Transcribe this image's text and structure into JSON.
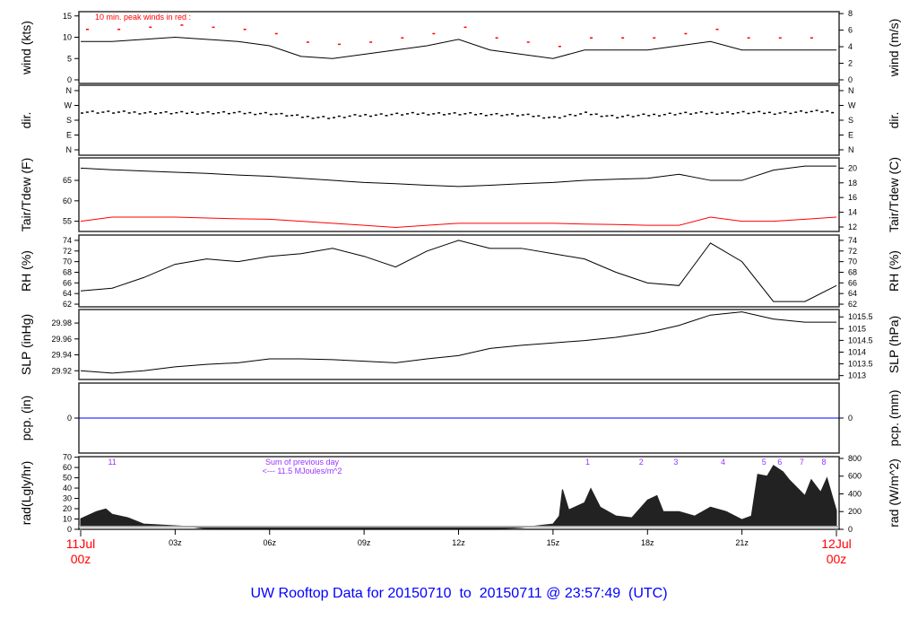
{
  "chart_data": [
    {
      "type": "line",
      "id": "wind",
      "ylabel": "wind (kts)",
      "ylabel_right": "wind (m/s)",
      "ylim": [
        0,
        16
      ],
      "yticks": [
        0,
        5,
        10,
        15
      ],
      "yticks_right": [
        0,
        2,
        4,
        6,
        8
      ],
      "annotation": "10 min. peak winds in red :",
      "x_hours": [
        0,
        1,
        2,
        3,
        4,
        5,
        6,
        7,
        8,
        9,
        10,
        11,
        12,
        13,
        14,
        15,
        16,
        17,
        18,
        19,
        20,
        21,
        22,
        23,
        24
      ],
      "series": [
        {
          "values": [
            9,
            9,
            9.5,
            10,
            9.5,
            9,
            8,
            5.5,
            5,
            6,
            7,
            8,
            9.5,
            7,
            6,
            5,
            7,
            7,
            7,
            8,
            9,
            7,
            7,
            7,
            7
          ],
          "color": "#000000"
        },
        {
          "values": [
            12,
            12,
            12.5,
            13,
            12.5,
            12,
            11,
            9,
            8.5,
            9,
            10,
            11,
            12.5,
            10,
            9,
            8,
            10,
            10,
            10,
            11,
            12,
            10,
            10,
            10,
            10
          ],
          "color": "#ff0000",
          "style": "points"
        }
      ]
    },
    {
      "type": "scatter",
      "id": "dir",
      "ylabel": "dir.",
      "ylabel_right": "dir.",
      "ylim": [
        0,
        360
      ],
      "yticks": [
        0,
        90,
        180,
        270,
        360
      ],
      "ytick_labels": [
        "N",
        "E",
        "S",
        "W",
        "N"
      ],
      "x_hours": [
        0,
        1,
        2,
        3,
        4,
        5,
        6,
        7,
        8,
        9,
        10,
        11,
        12,
        13,
        14,
        15,
        16,
        17,
        18,
        19,
        20,
        21,
        22,
        23,
        24
      ],
      "values": [
        235,
        232,
        230,
        228,
        230,
        228,
        225,
        205,
        200,
        215,
        220,
        225,
        222,
        220,
        215,
        200,
        225,
        205,
        215,
        225,
        228,
        230,
        228,
        235,
        238
      ]
    },
    {
      "type": "line",
      "id": "temp",
      "ylabel": "Tair/Tdew (F)",
      "ylabel_right": "Tair/Tdew (C)",
      "ylim": [
        52.5,
        70.5
      ],
      "yticks": [
        55,
        60,
        65
      ],
      "yticks_right": [
        12,
        14,
        16,
        18,
        20
      ],
      "x_hours": [
        0,
        1,
        2,
        3,
        4,
        5,
        6,
        7,
        8,
        9,
        10,
        11,
        12,
        13,
        14,
        15,
        16,
        17,
        18,
        19,
        20,
        21,
        22,
        23,
        24
      ],
      "series": [
        {
          "values": [
            68,
            67.6,
            67.3,
            67,
            66.7,
            66.3,
            66,
            65.5,
            65,
            64.5,
            64.2,
            63.8,
            63.5,
            63.8,
            64.2,
            64.5,
            65,
            65.3,
            65.5,
            66.5,
            65,
            65,
            67.5,
            68.5,
            68.5
          ],
          "color": "#000000"
        },
        {
          "values": [
            55,
            56,
            56,
            56,
            55.8,
            55.6,
            55.5,
            55,
            54.5,
            54,
            53.5,
            54,
            54.5,
            54.5,
            54.5,
            54.5,
            54.3,
            54.2,
            54,
            54,
            56,
            55,
            55,
            55.5,
            56
          ],
          "color": "#ff0000"
        }
      ]
    },
    {
      "type": "line",
      "id": "rh",
      "ylabel": "RH (%)",
      "ylabel_right": "RH (%)",
      "ylim": [
        61.5,
        75
      ],
      "yticks": [
        62,
        64,
        66,
        68,
        70,
        72,
        74
      ],
      "x_hours": [
        0,
        1,
        2,
        3,
        4,
        5,
        6,
        7,
        8,
        9,
        10,
        11,
        12,
        13,
        14,
        15,
        16,
        17,
        18,
        19,
        20,
        21,
        22,
        23,
        24
      ],
      "series": [
        {
          "values": [
            64.5,
            65,
            67,
            69.5,
            70.5,
            70,
            71,
            71.5,
            72.5,
            71,
            69,
            72,
            74,
            72.5,
            72.5,
            71.5,
            70.5,
            68,
            66,
            65.5,
            73.5,
            70,
            62.5,
            62.5,
            65.5
          ],
          "color": "#000000"
        }
      ]
    },
    {
      "type": "line",
      "id": "slp",
      "ylabel": "SLP (inHg)",
      "ylabel_right": "SLP (hPa)",
      "ylim": [
        29.909,
        29.997
      ],
      "yticks": [
        29.92,
        29.94,
        29.96,
        29.98
      ],
      "yticks_right": [
        1013,
        1013.5,
        1014,
        1014.5,
        1015,
        1015.5
      ],
      "x_hours": [
        0,
        1,
        2,
        3,
        4,
        5,
        6,
        7,
        8,
        9,
        10,
        11,
        12,
        13,
        14,
        15,
        16,
        17,
        18,
        19,
        20,
        21,
        22,
        23,
        24
      ],
      "series": [
        {
          "values": [
            29.92,
            29.917,
            29.92,
            29.925,
            29.928,
            29.93,
            29.935,
            29.935,
            29.934,
            29.932,
            29.93,
            29.935,
            29.939,
            29.948,
            29.952,
            29.955,
            29.958,
            29.962,
            29.968,
            29.977,
            29.99,
            29.994,
            29.985,
            29.981,
            29.981
          ],
          "color": "#000000"
        }
      ]
    },
    {
      "type": "line",
      "id": "pcp",
      "ylabel": "pcp. (in)",
      "ylabel_right": "pcp. (mm)",
      "yticks": [
        0
      ],
      "yticks_right": [
        0
      ],
      "x_hours": [
        0,
        24
      ],
      "series": [
        {
          "values": [
            0,
            0
          ],
          "color": "#0000ff"
        }
      ]
    },
    {
      "type": "area",
      "id": "rad",
      "ylabel": "rad(Lgly/hr)",
      "ylabel_right": "rad (W/m^2)",
      "ylim": [
        0,
        820
      ],
      "yticks_left": [
        0,
        10,
        20,
        30,
        40,
        50,
        60,
        70
      ],
      "yticks_right": [
        0,
        200,
        400,
        600,
        800
      ],
      "annotation_lines": [
        "Sum of previous day",
        "<--- 11.5 MJoules/m^2"
      ],
      "markers": [
        {
          "label": "11",
          "hour": 1.0
        },
        {
          "label": "1",
          "hour": 16.1
        },
        {
          "label": "2",
          "hour": 17.8
        },
        {
          "label": "3",
          "hour": 18.9
        },
        {
          "label": "4",
          "hour": 20.4
        },
        {
          "label": "5",
          "hour": 21.7
        },
        {
          "label": "6",
          "hour": 22.2
        },
        {
          "label": "7",
          "hour": 22.9
        },
        {
          "label": "8",
          "hour": 23.6
        }
      ],
      "x_hours": [
        0,
        0.5,
        0.8,
        1,
        1.5,
        2,
        3,
        3.5,
        4,
        5,
        13,
        14,
        15,
        15.2,
        15.3,
        15.5,
        16,
        16.2,
        16.5,
        17,
        17.5,
        18,
        18.3,
        18.5,
        19,
        19.5,
        20,
        20.5,
        21,
        21.3,
        21.5,
        21.8,
        22,
        22.3,
        22.5,
        23,
        23.2,
        23.5,
        23.7,
        24
      ],
      "values": [
        120,
        200,
        230,
        170,
        130,
        60,
        40,
        30,
        5,
        0,
        0,
        20,
        60,
        150,
        450,
        220,
        300,
        460,
        250,
        150,
        130,
        330,
        380,
        200,
        200,
        150,
        250,
        200,
        110,
        150,
        620,
        600,
        720,
        650,
        560,
        380,
        560,
        420,
        580,
        210
      ]
    }
  ],
  "xaxis": {
    "tick_hours": [
      3,
      6,
      9,
      12,
      15,
      18,
      21
    ],
    "tick_labels": [
      "03z",
      "06z",
      "09z",
      "12z",
      "15z",
      "18z",
      "21z"
    ],
    "start_label": [
      "11Jul",
      "00z"
    ],
    "end_label": [
      "12Jul",
      "00z"
    ],
    "range_hours": [
      0,
      24
    ]
  },
  "footer": {
    "title": "UW Rooftop Data for 20150710  to  20150711 @ 23:57:49  (UTC)"
  },
  "colors": {
    "title": "#0000ff",
    "peak": "#ff0000",
    "dew": "#ff0000",
    "rain": "#0000ff",
    "markers": "#9933ff",
    "date": "#ff0000"
  }
}
